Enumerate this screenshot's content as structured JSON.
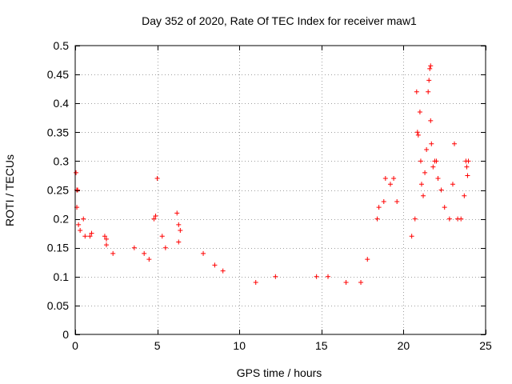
{
  "chart_data": {
    "type": "scatter",
    "title": "Day 352 of 2020, Rate Of TEC Index for receiver maw1",
    "xlabel": "GPS time / hours",
    "ylabel": "ROTI / TECUs",
    "xlim": [
      0,
      25
    ],
    "ylim": [
      0,
      0.5
    ],
    "xticks": [
      0,
      5,
      10,
      15,
      20,
      25
    ],
    "yticks": [
      0,
      0.05,
      0.1,
      0.15,
      0.2,
      0.25,
      0.3,
      0.35,
      0.4,
      0.45,
      0.5
    ],
    "xtick_labels": [
      "0",
      "5",
      "10",
      "15",
      "20",
      "25"
    ],
    "ytick_labels": [
      "0",
      "0.05",
      "0.1",
      "0.15",
      "0.2",
      "0.25",
      "0.3",
      "0.35",
      "0.4",
      "0.45",
      "0.5"
    ],
    "grid": true,
    "marker": "plus",
    "marker_color": "#ff0000",
    "series": [
      {
        "points": [
          [
            0.05,
            0.28
          ],
          [
            0.1,
            0.25
          ],
          [
            0.15,
            0.25
          ],
          [
            0.1,
            0.22
          ],
          [
            0.2,
            0.19
          ],
          [
            0.3,
            0.18
          ],
          [
            0.5,
            0.2
          ],
          [
            0.6,
            0.17
          ],
          [
            0.9,
            0.17
          ],
          [
            1.0,
            0.175
          ],
          [
            1.8,
            0.17
          ],
          [
            1.9,
            0.165
          ],
          [
            1.9,
            0.155
          ],
          [
            2.3,
            0.14
          ],
          [
            3.6,
            0.15
          ],
          [
            4.2,
            0.14
          ],
          [
            4.5,
            0.13
          ],
          [
            4.8,
            0.2
          ],
          [
            4.9,
            0.205
          ],
          [
            5.0,
            0.27
          ],
          [
            5.3,
            0.17
          ],
          [
            5.5,
            0.15
          ],
          [
            6.2,
            0.21
          ],
          [
            6.3,
            0.19
          ],
          [
            6.4,
            0.18
          ],
          [
            6.3,
            0.16
          ],
          [
            7.8,
            0.14
          ],
          [
            8.5,
            0.12
          ],
          [
            9.0,
            0.11
          ],
          [
            11.0,
            0.09
          ],
          [
            12.2,
            0.1
          ],
          [
            14.7,
            0.1
          ],
          [
            15.4,
            0.1
          ],
          [
            16.5,
            0.09
          ],
          [
            17.4,
            0.09
          ],
          [
            17.8,
            0.13
          ],
          [
            18.4,
            0.2
          ],
          [
            18.5,
            0.22
          ],
          [
            18.8,
            0.23
          ],
          [
            18.9,
            0.27
          ],
          [
            19.2,
            0.26
          ],
          [
            19.4,
            0.27
          ],
          [
            19.6,
            0.23
          ],
          [
            20.5,
            0.17
          ],
          [
            20.7,
            0.2
          ],
          [
            20.8,
            0.42
          ],
          [
            20.85,
            0.35
          ],
          [
            20.9,
            0.345
          ],
          [
            21.0,
            0.385
          ],
          [
            21.05,
            0.3
          ],
          [
            21.1,
            0.26
          ],
          [
            21.2,
            0.24
          ],
          [
            21.3,
            0.28
          ],
          [
            21.4,
            0.32
          ],
          [
            21.5,
            0.42
          ],
          [
            21.55,
            0.44
          ],
          [
            21.6,
            0.46
          ],
          [
            21.65,
            0.465
          ],
          [
            21.65,
            0.37
          ],
          [
            21.7,
            0.33
          ],
          [
            21.8,
            0.29
          ],
          [
            21.9,
            0.3
          ],
          [
            22.0,
            0.3
          ],
          [
            22.1,
            0.27
          ],
          [
            22.3,
            0.25
          ],
          [
            22.5,
            0.22
          ],
          [
            22.8,
            0.2
          ],
          [
            23.0,
            0.26
          ],
          [
            23.1,
            0.33
          ],
          [
            23.3,
            0.2
          ],
          [
            23.5,
            0.2
          ],
          [
            23.7,
            0.24
          ],
          [
            23.8,
            0.3
          ],
          [
            23.85,
            0.29
          ],
          [
            23.9,
            0.275
          ],
          [
            23.95,
            0.3
          ]
        ]
      }
    ]
  }
}
